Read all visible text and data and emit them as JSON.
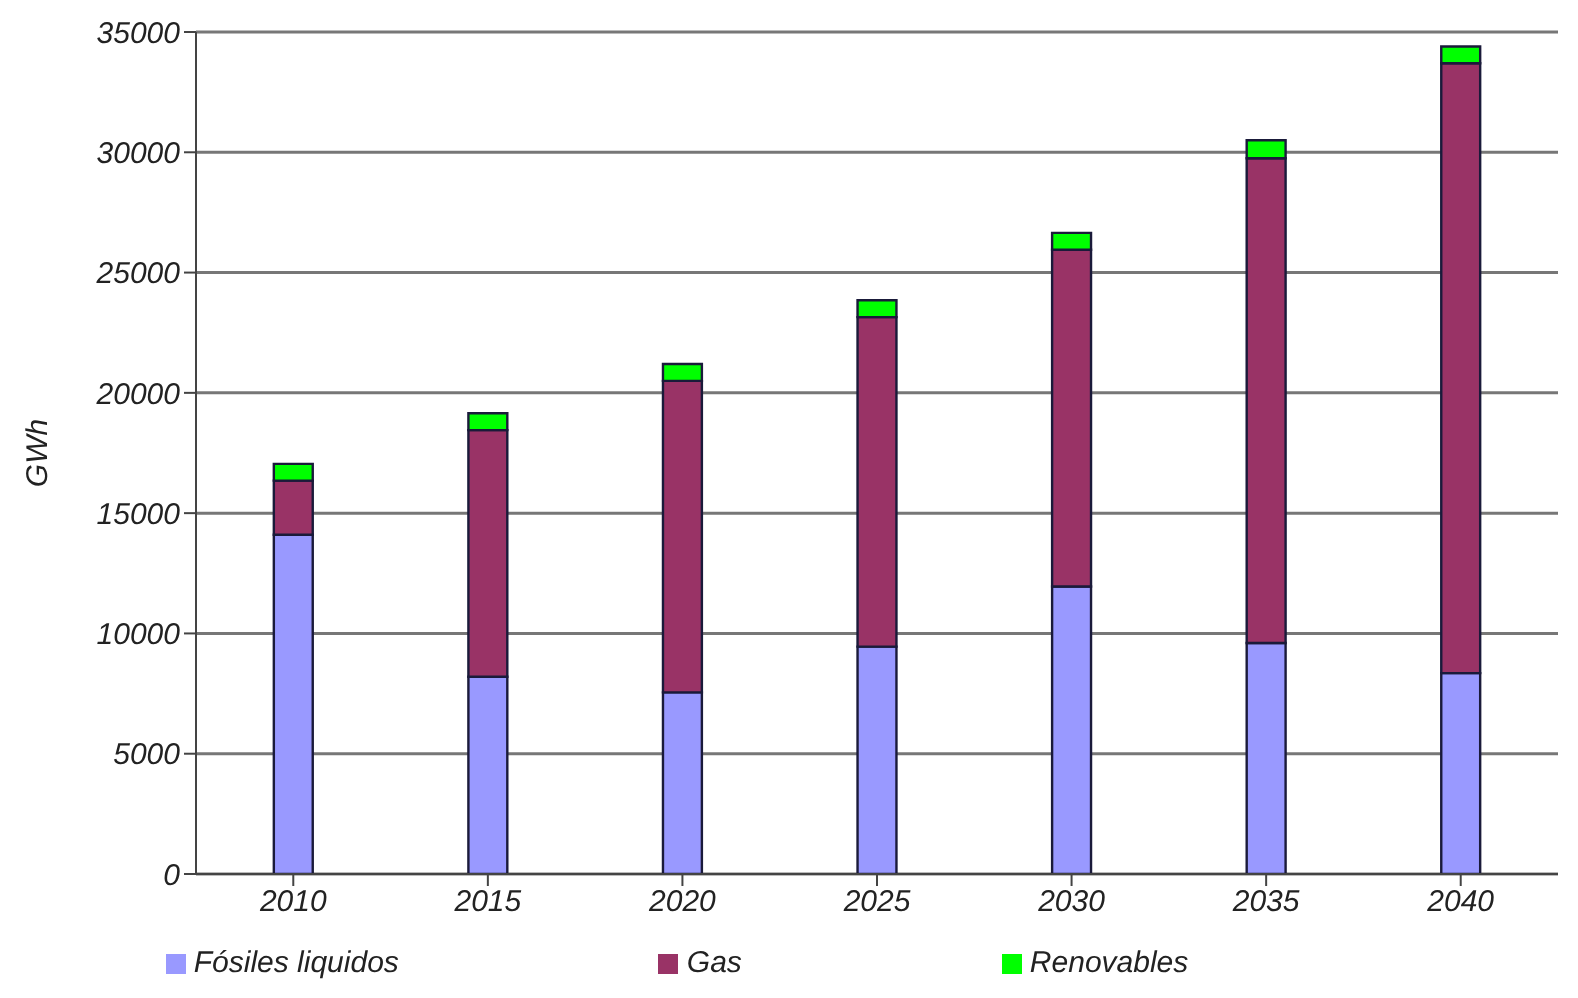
{
  "chart_data": {
    "type": "bar",
    "stacked": true,
    "ylabel": "GWh",
    "categories": [
      "2010",
      "2015",
      "2020",
      "2025",
      "2030",
      "2035",
      "2040"
    ],
    "series": [
      {
        "name": "Fósiles liquidos",
        "color": "#9999ff",
        "values": [
          14100,
          8200,
          7550,
          9450,
          11950,
          9600,
          8350
        ]
      },
      {
        "name": "Gas",
        "color": "#993366",
        "values": [
          2250,
          10250,
          12950,
          13700,
          14000,
          20150,
          25350
        ]
      },
      {
        "name": "Renovables",
        "color": "#00ff00",
        "values": [
          700,
          700,
          700,
          700,
          700,
          750,
          700
        ]
      }
    ],
    "ylim": [
      0,
      35000
    ],
    "yticks": [
      0,
      5000,
      10000,
      15000,
      20000,
      25000,
      30000,
      35000
    ],
    "grid": "y",
    "legend": "bottom"
  }
}
